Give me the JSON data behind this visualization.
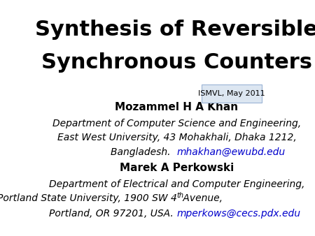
{
  "title_line1": "Synthesis of Reversible",
  "title_line2": "Synchronous Counters",
  "badge_text": "ISMVL, May 2011",
  "badge_bg": "#dce6f1",
  "badge_border": "#9ab3d5",
  "author1_name": "Mozammel H A Khan",
  "author1_line1": "Department of Computer Science and Engineering,",
  "author1_line2": "East West University, 43 Mohakhali, Dhaka 1212,",
  "author1_line3": "Bangladesh.  ",
  "author1_email": "mhakhan@ewubd.edu",
  "author2_name": "Marek A Perkowski",
  "author2_line1": "Department of Electrical and Computer Engineering,",
  "author2_line2": "Portland State University, 1900 SW 4",
  "author2_line2b": "th",
  "author2_line2c": " Avenue,",
  "author2_line3": "Portland, OR 97201, USA. ",
  "author2_email": "mperkows@cecs.pdx.edu",
  "bg_color": "#ffffff",
  "text_color": "#000000",
  "link_color": "#0000cc",
  "title_fontsize": 22,
  "name_fontsize": 11,
  "body_fontsize": 10,
  "badge_fontsize": 8
}
